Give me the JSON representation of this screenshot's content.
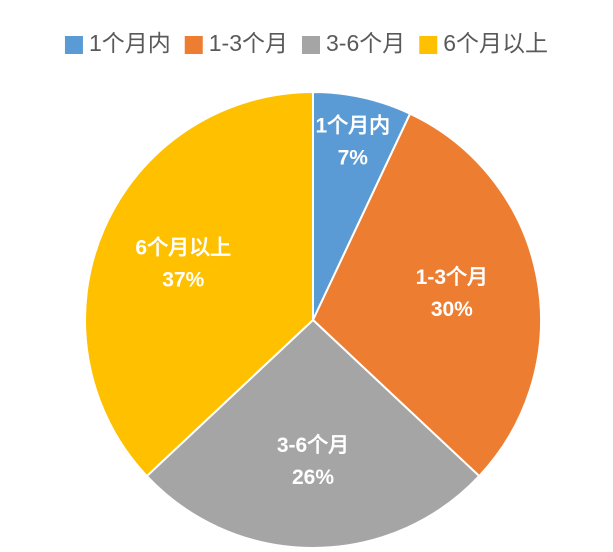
{
  "chart_data": {
    "type": "pie",
    "categories": [
      "1个月内",
      "1-3个月",
      "3-6个月",
      "6个月以上"
    ],
    "values": [
      7,
      30,
      26,
      37
    ],
    "value_labels": [
      "7%",
      "30%",
      "26%",
      "37%"
    ],
    "colors": [
      "#5b9bd5",
      "#ed7d31",
      "#a5a5a5",
      "#ffc000"
    ],
    "legend": "top"
  }
}
